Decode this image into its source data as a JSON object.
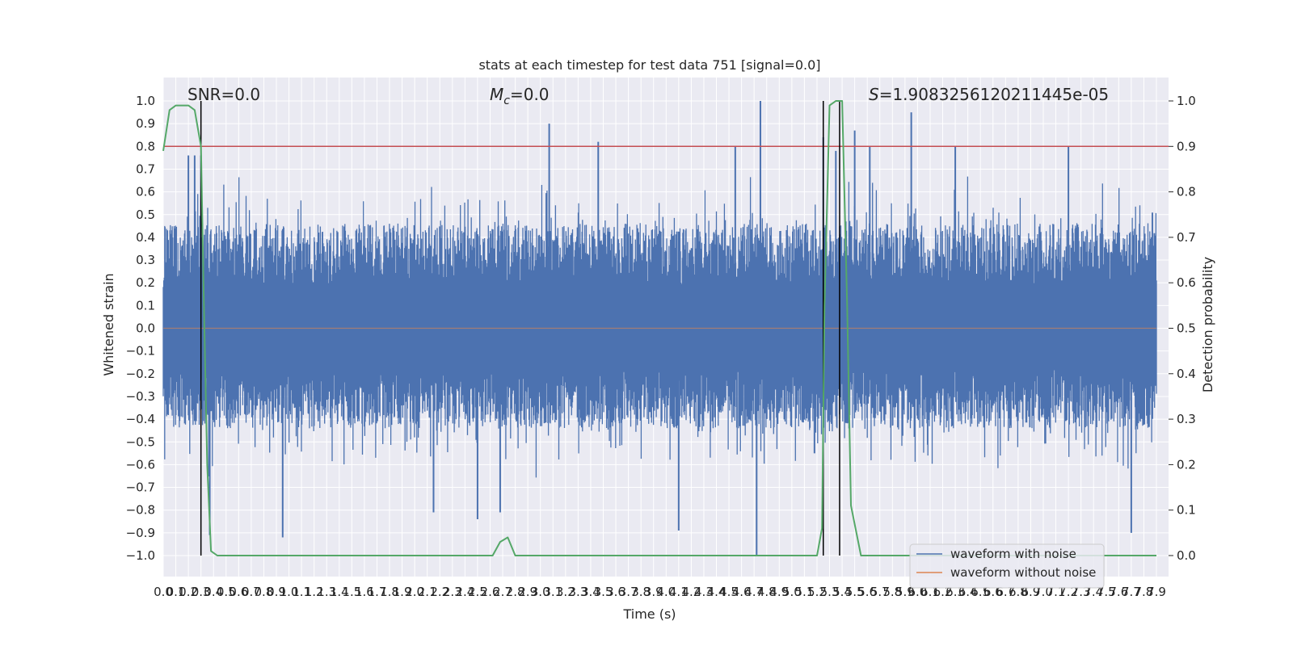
{
  "chart_data": {
    "type": "line",
    "title": "stats at each timestep for test data 751 [signal=0.0]",
    "xlabel": "Time (s)",
    "ylabel": "Whitened strain",
    "y2label": "Detection probability",
    "xlim": [
      0.0,
      7.9
    ],
    "ylim": [
      -1.0,
      1.0
    ],
    "y2lim": [
      0.0,
      1.0
    ],
    "x_ticks": [
      "0.0",
      "0.1",
      "0.2",
      "0.3",
      "0.4",
      "0.5",
      "0.6",
      "0.7",
      "0.8",
      "0.9",
      "1.0",
      "1.1",
      "1.2",
      "1.3",
      "1.4",
      "1.5",
      "1.6",
      "1.7",
      "1.8",
      "1.9",
      "2.0",
      "2.1",
      "2.2",
      "2.3",
      "2.4",
      "2.5",
      "2.6",
      "2.7",
      "2.8",
      "2.9",
      "3.0",
      "3.1",
      "3.2",
      "3.3",
      "3.4",
      "3.5",
      "3.6",
      "3.7",
      "3.8",
      "3.9",
      "4.0",
      "4.1",
      "4.2",
      "4.3",
      "4.4",
      "4.5",
      "4.6",
      "4.7",
      "4.8",
      "4.9",
      "5.0",
      "5.1",
      "5.2",
      "5.3",
      "5.4",
      "5.5",
      "5.6",
      "5.7",
      "5.8",
      "5.9",
      "6.0",
      "6.1",
      "6.2",
      "6.3",
      "6.4",
      "6.5",
      "6.6",
      "6.7",
      "6.8",
      "6.9",
      "7.0",
      "7.1",
      "7.2",
      "7.3",
      "7.4",
      "7.5",
      "7.6",
      "7.7",
      "7.8",
      "7.9"
    ],
    "y_ticks": [
      "1.0",
      "0.9",
      "0.8",
      "0.7",
      "0.6",
      "0.5",
      "0.4",
      "0.3",
      "0.2",
      "0.1",
      "0.0",
      "-0.1",
      "-0.2",
      "-0.3",
      "-0.4",
      "-0.5",
      "-0.6",
      "-0.7",
      "-0.8",
      "-0.9",
      "-1.0"
    ],
    "y2_ticks": [
      "1.0",
      "0.9",
      "0.8",
      "0.7",
      "0.6",
      "0.5",
      "0.4",
      "0.3",
      "0.2",
      "0.1",
      "0.0"
    ],
    "annotations": {
      "snr": "SNR=0.0",
      "mc": "M_c=0.0",
      "mc_base": "M",
      "mc_sub": "c",
      "mc_value": "=0.0",
      "s_base": "S",
      "s_value": "=1.9083256120211445e-05"
    },
    "legend": {
      "placement": "lower-right",
      "entries": [
        "waveform with noise",
        "waveform without noise"
      ]
    },
    "series": [
      {
        "name": "waveform with noise",
        "axis": "left",
        "color": "#4c72b0",
        "description_of_envelope": "dense noise between roughly -0.9 and 1.0 across 0.0-7.9 s",
        "peaks_x": [
          0.2,
          0.25,
          0.3,
          3.07,
          3.46,
          4.55,
          4.75,
          5.25,
          5.35,
          5.5,
          5.62,
          5.95,
          6.3,
          7.2
        ],
        "peaks_y": [
          0.76,
          0.76,
          0.76,
          0.9,
          0.82,
          0.8,
          1.0,
          0.84,
          0.78,
          0.87,
          0.8,
          0.95,
          0.8,
          0.8
        ],
        "troughs_x": [
          0.37,
          0.95,
          2.15,
          2.5,
          2.68,
          4.1,
          4.72,
          5.18,
          7.7
        ],
        "troughs_y": [
          -0.91,
          -0.92,
          -0.81,
          -0.84,
          -0.81,
          -0.89,
          -1.0,
          -0.55,
          -0.9
        ]
      },
      {
        "name": "waveform without noise",
        "axis": "left",
        "color": "#dd8452",
        "x": [
          0.0,
          7.9
        ],
        "y": [
          0.0,
          0.0
        ]
      },
      {
        "name": "detection probability",
        "axis": "right",
        "color": "#55a868",
        "x": [
          0.0,
          0.05,
          0.1,
          0.15,
          0.2,
          0.25,
          0.3,
          0.32,
          0.35,
          0.38,
          0.43,
          0.5,
          2.62,
          2.68,
          2.74,
          2.8,
          5.2,
          5.24,
          5.26,
          5.3,
          5.35,
          5.4,
          5.44,
          5.47,
          5.55,
          5.9,
          7.9
        ],
        "y": [
          0.89,
          0.98,
          0.99,
          0.99,
          0.99,
          0.98,
          0.9,
          0.6,
          0.2,
          0.01,
          0.0,
          0.0,
          0.0,
          0.03,
          0.04,
          0.0,
          0.0,
          0.06,
          0.55,
          0.99,
          1.0,
          1.0,
          0.55,
          0.11,
          0.0,
          0.0,
          0.0
        ]
      }
    ],
    "threshold_line": {
      "axis": "right",
      "y": 0.9,
      "color": "#c44e52"
    },
    "vertical_lines_x": [
      0.3,
      5.25,
      5.38
    ],
    "background": "#eaeaf2",
    "grid": true
  }
}
